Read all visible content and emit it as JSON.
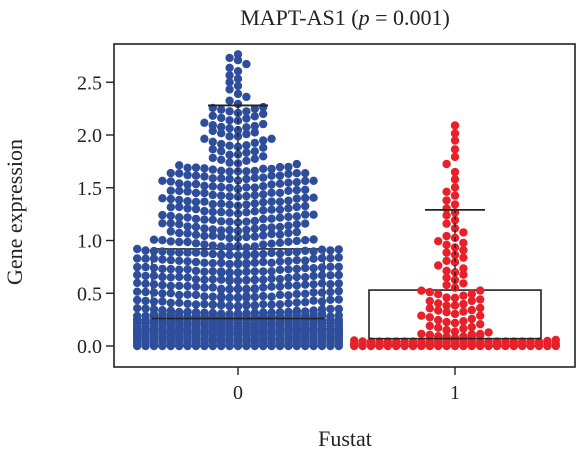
{
  "chart_data": {
    "type": "box-beeswarm",
    "title_main": "MAPT-AS1 (",
    "title_p": "p",
    "title_rest": " = 0.001)",
    "xlabel": "Fustat",
    "ylabel": "Gene expression",
    "categories": [
      "0",
      "1"
    ],
    "y_ticks": [
      "0.0",
      "0.5",
      "1.0",
      "1.5",
      "2.0",
      "2.5"
    ],
    "y_tick_values": [
      0.0,
      0.5,
      1.0,
      1.5,
      2.0,
      2.5
    ],
    "ylim": [
      -0.03,
      2.82
    ],
    "colors": {
      "group0": "#2e4e9c",
      "group1": "#e8202a"
    },
    "groups": [
      {
        "name": "0",
        "box": {
          "q1": 0.0,
          "median": 0.26,
          "q3": 0.92,
          "whisker_low": 0.0,
          "whisker_high": 2.28
        },
        "point_count": 980,
        "max_value": 2.79
      },
      {
        "name": "1",
        "box": {
          "q1": 0.0,
          "median": 0.07,
          "q3": 0.53,
          "whisker_low": 0.0,
          "whisker_high": 1.29
        },
        "point_count": 170,
        "max_value": 2.13
      }
    ]
  }
}
